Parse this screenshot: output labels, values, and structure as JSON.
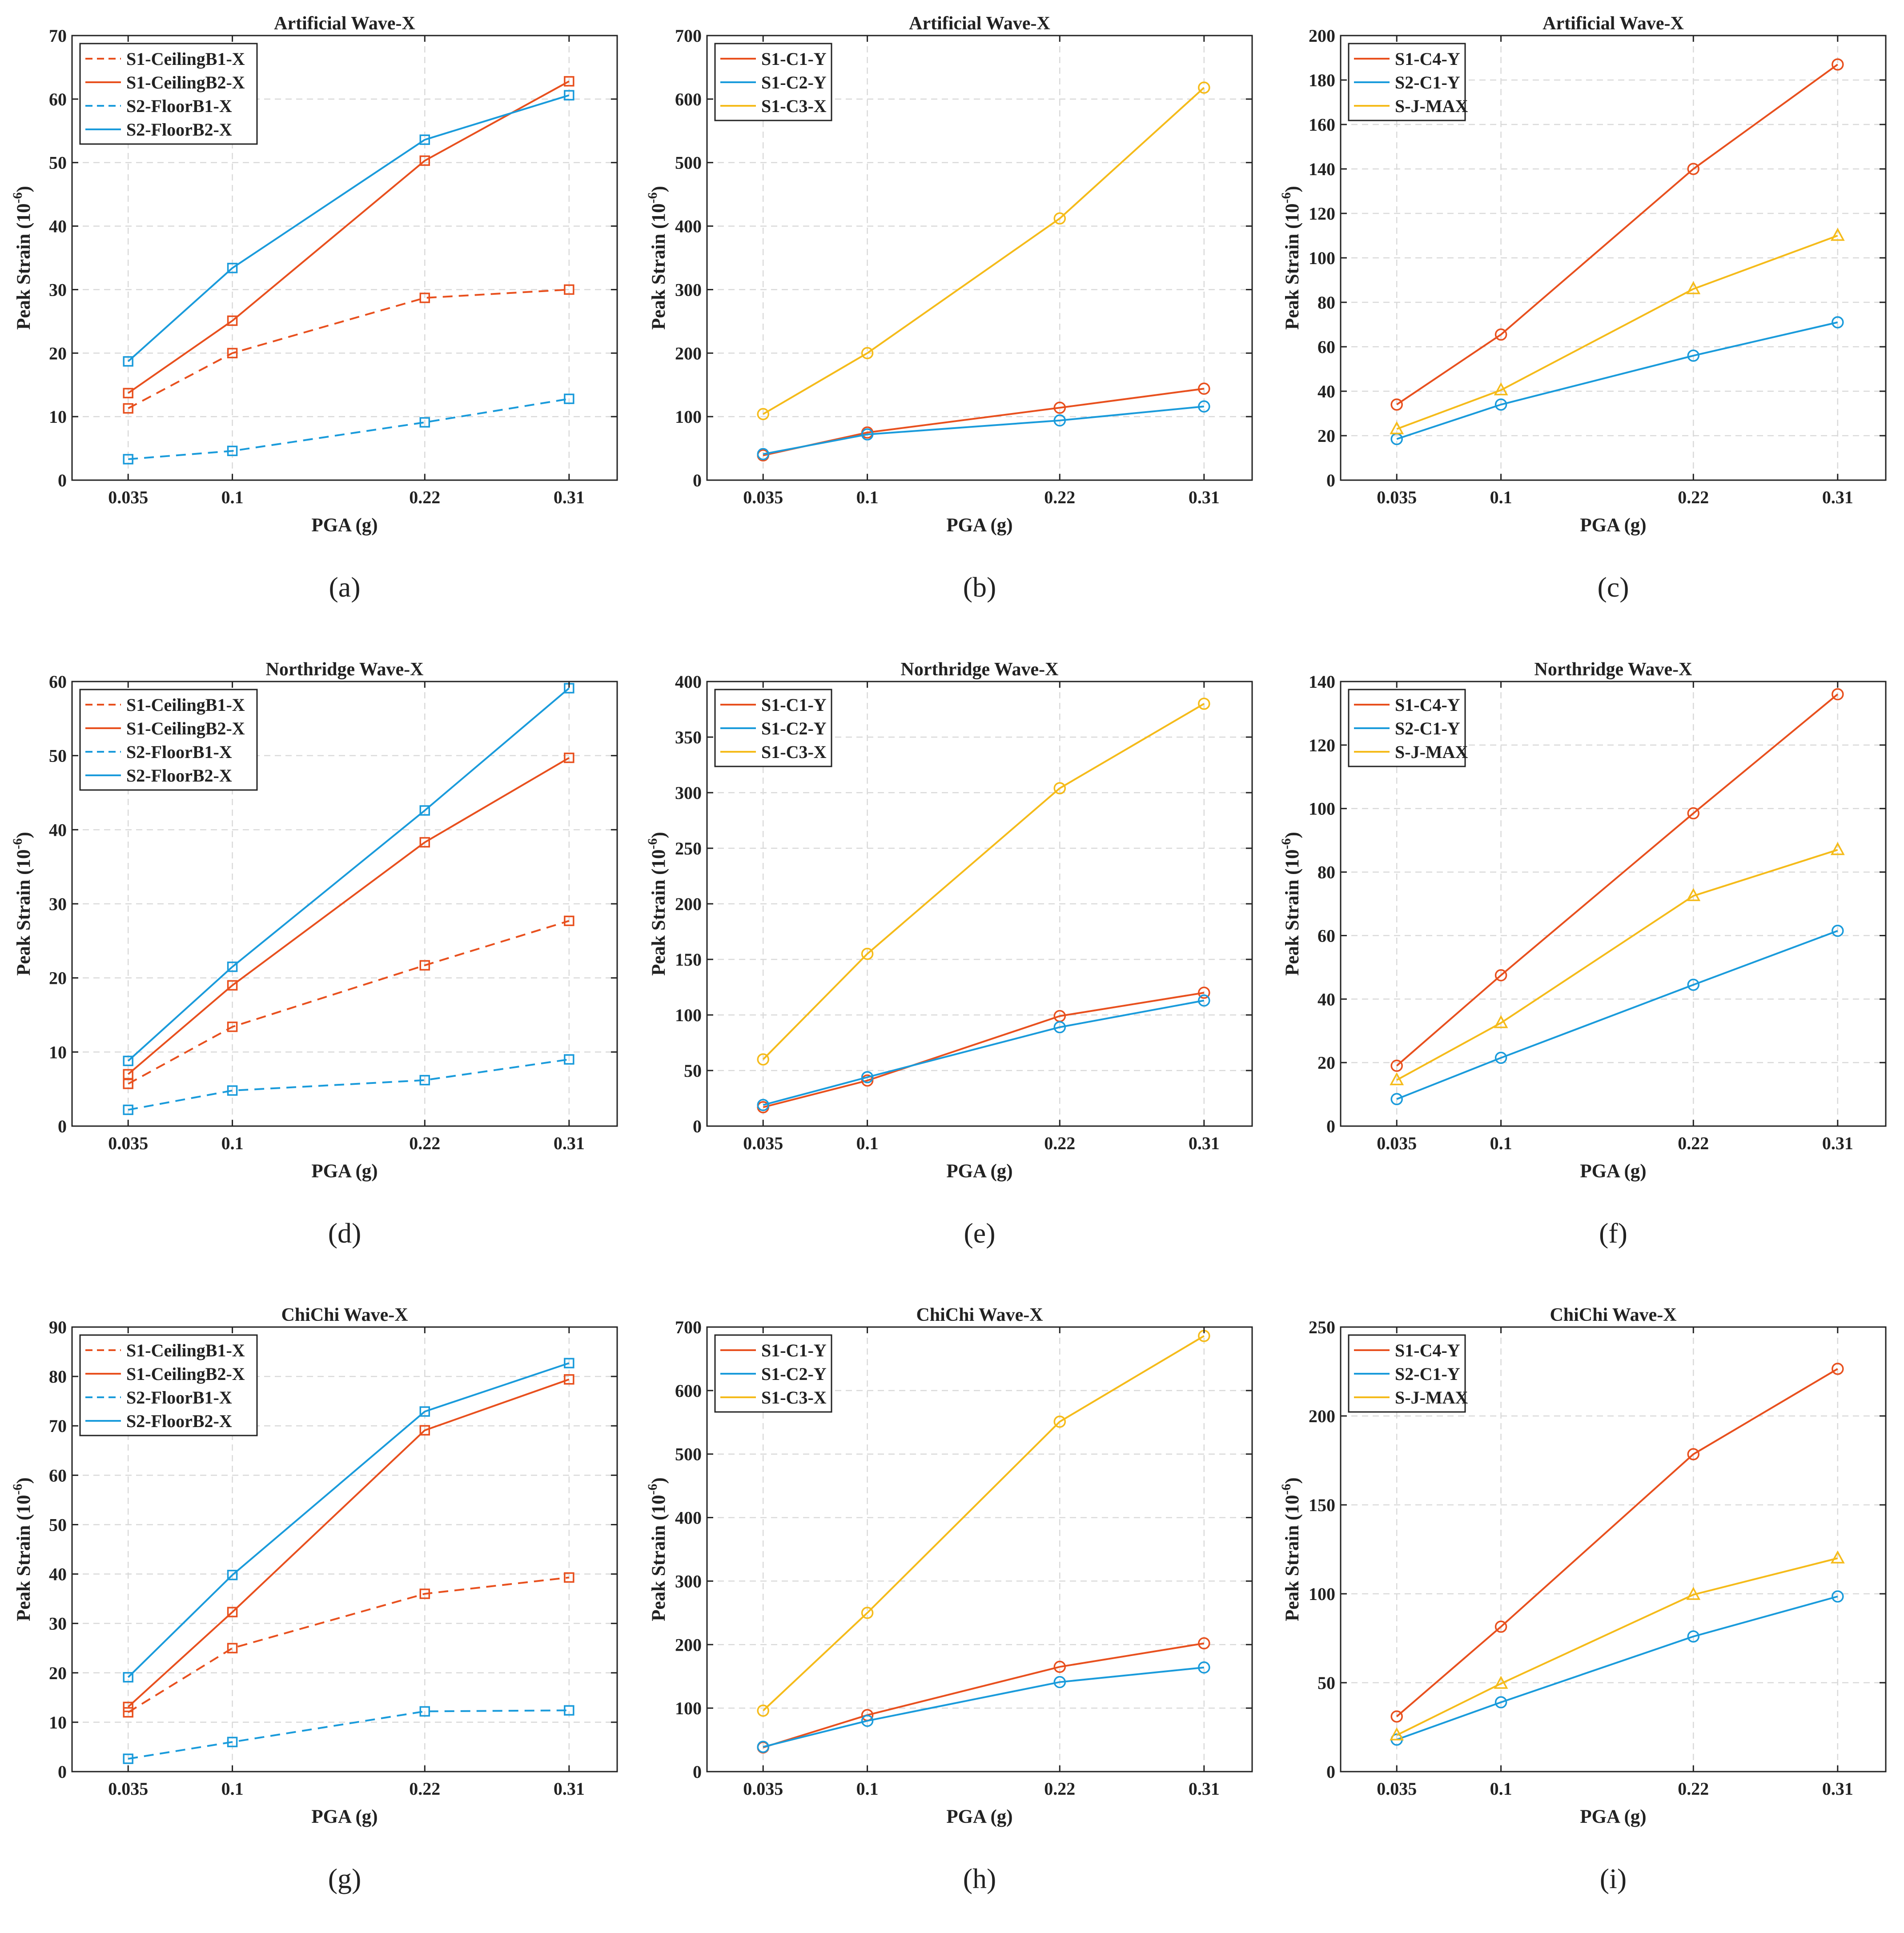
{
  "figure": {
    "xlabel": "PGA (g)",
    "ylabel": "Peak Strain (10",
    "ylabel_sup": "-6",
    "ylabel_end": ")"
  },
  "colors": {
    "orange": "#E8501E",
    "blue": "#1A9BDB",
    "yellow": "#F5BB1A"
  },
  "chart_data": [
    {
      "panel": "(a)",
      "title": "Artificial Wave-X",
      "type": "line",
      "categories": [
        "0.035",
        "0.1",
        "0.22",
        "0.31"
      ],
      "x": [
        0.035,
        0.1,
        0.22,
        0.31
      ],
      "xlim": [
        0.0,
        0.34
      ],
      "ylim": [
        0,
        70
      ],
      "yticks": [
        0,
        10,
        20,
        30,
        40,
        50,
        60,
        70
      ],
      "grid": true,
      "legend": "top-left",
      "series": [
        {
          "name": "S1-CeilingB1-X",
          "color": "orange",
          "dashed": true,
          "marker": "square",
          "values": [
            11.3,
            20.0,
            28.7,
            30.0
          ]
        },
        {
          "name": "S1-CeilingB2-X",
          "color": "orange",
          "dashed": false,
          "marker": "square",
          "values": [
            13.7,
            25.1,
            50.3,
            62.8
          ]
        },
        {
          "name": "S2-FloorB1-X",
          "color": "blue",
          "dashed": true,
          "marker": "square",
          "values": [
            3.3,
            4.6,
            9.1,
            12.8
          ]
        },
        {
          "name": "S2-FloorB2-X",
          "color": "blue",
          "dashed": false,
          "marker": "square",
          "values": [
            18.7,
            33.4,
            53.6,
            60.6
          ]
        }
      ]
    },
    {
      "panel": "(b)",
      "title": "Artificial Wave-X",
      "type": "line",
      "categories": [
        "0.035",
        "0.1",
        "0.22",
        "0.31"
      ],
      "x": [
        0.035,
        0.1,
        0.22,
        0.31
      ],
      "xlim": [
        0.0,
        0.34
      ],
      "ylim": [
        0,
        700
      ],
      "yticks": [
        0,
        100,
        200,
        300,
        400,
        500,
        600,
        700
      ],
      "grid": true,
      "legend": "top-left",
      "series": [
        {
          "name": "S1-C1-Y",
          "color": "orange",
          "dashed": false,
          "marker": "circle",
          "values": [
            39,
            75,
            114,
            144
          ]
        },
        {
          "name": "S1-C2-Y",
          "color": "blue",
          "dashed": false,
          "marker": "circle",
          "values": [
            41,
            72,
            94,
            116
          ]
        },
        {
          "name": "S1-C3-X",
          "color": "yellow",
          "dashed": false,
          "marker": "circle",
          "values": [
            104,
            200,
            412,
            618
          ]
        }
      ]
    },
    {
      "panel": "(c)",
      "title": "Artificial Wave-X",
      "type": "line",
      "categories": [
        "0.035",
        "0.1",
        "0.22",
        "0.31"
      ],
      "x": [
        0.035,
        0.1,
        0.22,
        0.31
      ],
      "xlim": [
        0.0,
        0.34
      ],
      "ylim": [
        0,
        200
      ],
      "yticks": [
        0,
        20,
        40,
        60,
        80,
        100,
        120,
        140,
        160,
        180,
        200
      ],
      "grid": true,
      "legend": "top-left",
      "series": [
        {
          "name": "S1-C4-Y",
          "color": "orange",
          "dashed": false,
          "marker": "circle",
          "values": [
            34,
            65.5,
            140,
            187
          ]
        },
        {
          "name": "S2-C1-Y",
          "color": "blue",
          "dashed": false,
          "marker": "circle",
          "values": [
            18.5,
            34,
            56,
            71
          ]
        },
        {
          "name": "S-J-MAX",
          "color": "yellow",
          "dashed": false,
          "marker": "triangle",
          "values": [
            23,
            40.5,
            86,
            110
          ]
        }
      ]
    },
    {
      "panel": "(d)",
      "title": "Northridge Wave-X",
      "type": "line",
      "categories": [
        "0.035",
        "0.1",
        "0.22",
        "0.31"
      ],
      "x": [
        0.035,
        0.1,
        0.22,
        0.31
      ],
      "xlim": [
        0.0,
        0.34
      ],
      "ylim": [
        0,
        60
      ],
      "yticks": [
        0,
        10,
        20,
        30,
        40,
        50,
        60
      ],
      "grid": true,
      "legend": "top-left",
      "series": [
        {
          "name": "S1-CeilingB1-X",
          "color": "orange",
          "dashed": true,
          "marker": "square",
          "values": [
            5.7,
            13.4,
            21.7,
            27.7
          ]
        },
        {
          "name": "S1-CeilingB2-X",
          "color": "orange",
          "dashed": false,
          "marker": "square",
          "values": [
            7.0,
            19.0,
            38.3,
            49.7
          ]
        },
        {
          "name": "S2-FloorB1-X",
          "color": "blue",
          "dashed": true,
          "marker": "square",
          "values": [
            2.2,
            4.8,
            6.2,
            9.0
          ]
        },
        {
          "name": "S2-FloorB2-X",
          "color": "blue",
          "dashed": false,
          "marker": "square",
          "values": [
            8.8,
            21.5,
            42.6,
            59.1
          ]
        }
      ]
    },
    {
      "panel": "(e)",
      "title": "Northridge Wave-X",
      "type": "line",
      "categories": [
        "0.035",
        "0.1",
        "0.22",
        "0.31"
      ],
      "x": [
        0.035,
        0.1,
        0.22,
        0.31
      ],
      "xlim": [
        0.0,
        0.34
      ],
      "ylim": [
        0,
        400
      ],
      "yticks": [
        0,
        50,
        100,
        150,
        200,
        250,
        300,
        350,
        400
      ],
      "grid": true,
      "legend": "top-left",
      "series": [
        {
          "name": "S1-C1-Y",
          "color": "orange",
          "dashed": false,
          "marker": "circle",
          "values": [
            17,
            41,
            99,
            120
          ]
        },
        {
          "name": "S1-C2-Y",
          "color": "blue",
          "dashed": false,
          "marker": "circle",
          "values": [
            19,
            44,
            89,
            113
          ]
        },
        {
          "name": "S1-C3-X",
          "color": "yellow",
          "dashed": false,
          "marker": "circle",
          "values": [
            60,
            155,
            304,
            380
          ]
        }
      ]
    },
    {
      "panel": "(f)",
      "title": "Northridge Wave-X",
      "type": "line",
      "categories": [
        "0.035",
        "0.1",
        "0.22",
        "0.31"
      ],
      "x": [
        0.035,
        0.1,
        0.22,
        0.31
      ],
      "xlim": [
        0.0,
        0.34
      ],
      "ylim": [
        0,
        140
      ],
      "yticks": [
        0,
        20,
        40,
        60,
        80,
        100,
        120,
        140
      ],
      "grid": true,
      "legend": "top-left",
      "series": [
        {
          "name": "S1-C4-Y",
          "color": "orange",
          "dashed": false,
          "marker": "circle",
          "values": [
            19,
            47.5,
            98.5,
            136
          ]
        },
        {
          "name": "S2-C1-Y",
          "color": "blue",
          "dashed": false,
          "marker": "circle",
          "values": [
            8.5,
            21.5,
            44.5,
            61.5
          ]
        },
        {
          "name": "S-J-MAX",
          "color": "yellow",
          "dashed": false,
          "marker": "triangle",
          "values": [
            14.5,
            32.5,
            72.5,
            87
          ]
        }
      ]
    },
    {
      "panel": "(g)",
      "title": "ChiChi Wave-X",
      "type": "line",
      "categories": [
        "0.035",
        "0.1",
        "0.22",
        "0.31"
      ],
      "x": [
        0.035,
        0.1,
        0.22,
        0.31
      ],
      "xlim": [
        0.0,
        0.34
      ],
      "ylim": [
        0,
        90
      ],
      "yticks": [
        0,
        10,
        20,
        30,
        40,
        50,
        60,
        70,
        80,
        90
      ],
      "grid": true,
      "legend": "top-left",
      "series": [
        {
          "name": "S1-CeilingB1-X",
          "color": "orange",
          "dashed": true,
          "marker": "square",
          "values": [
            12.0,
            25.0,
            36.0,
            39.3
          ]
        },
        {
          "name": "S1-CeilingB2-X",
          "color": "orange",
          "dashed": false,
          "marker": "square",
          "values": [
            13.1,
            32.3,
            69.1,
            79.4
          ]
        },
        {
          "name": "S2-FloorB1-X",
          "color": "blue",
          "dashed": true,
          "marker": "square",
          "values": [
            2.6,
            6.0,
            12.2,
            12.4
          ]
        },
        {
          "name": "S2-FloorB2-X",
          "color": "blue",
          "dashed": false,
          "marker": "square",
          "values": [
            19.1,
            39.8,
            72.9,
            82.7
          ]
        }
      ]
    },
    {
      "panel": "(h)",
      "title": "ChiChi Wave-X",
      "type": "line",
      "categories": [
        "0.035",
        "0.1",
        "0.22",
        "0.31"
      ],
      "x": [
        0.035,
        0.1,
        0.22,
        0.31
      ],
      "xlim": [
        0.0,
        0.34
      ],
      "ylim": [
        0,
        700
      ],
      "yticks": [
        0,
        100,
        200,
        300,
        400,
        500,
        600,
        700
      ],
      "grid": true,
      "legend": "top-left",
      "series": [
        {
          "name": "S1-C1-Y",
          "color": "orange",
          "dashed": false,
          "marker": "circle",
          "values": [
            38,
            89,
            165,
            202
          ]
        },
        {
          "name": "S1-C2-Y",
          "color": "blue",
          "dashed": false,
          "marker": "circle",
          "values": [
            39,
            80,
            141,
            164
          ]
        },
        {
          "name": "S1-C3-X",
          "color": "yellow",
          "dashed": false,
          "marker": "circle",
          "values": [
            96,
            250,
            551,
            686
          ]
        }
      ]
    },
    {
      "panel": "(i)",
      "title": "ChiChi Wave-X",
      "type": "line",
      "categories": [
        "0.035",
        "0.1",
        "0.22",
        "0.31"
      ],
      "x": [
        0.035,
        0.1,
        0.22,
        0.31
      ],
      "xlim": [
        0.0,
        0.34
      ],
      "ylim": [
        0,
        250
      ],
      "yticks": [
        0,
        50,
        100,
        150,
        200,
        250
      ],
      "grid": true,
      "legend": "top-left",
      "series": [
        {
          "name": "S1-C4-Y",
          "color": "orange",
          "dashed": false,
          "marker": "circle",
          "values": [
            31,
            81.5,
            178.5,
            226.5
          ]
        },
        {
          "name": "S2-C1-Y",
          "color": "blue",
          "dashed": false,
          "marker": "circle",
          "values": [
            18,
            39,
            76,
            98.5
          ]
        },
        {
          "name": "S-J-MAX",
          "color": "yellow",
          "dashed": false,
          "marker": "triangle",
          "values": [
            20.5,
            49.5,
            99.5,
            120
          ]
        }
      ]
    }
  ]
}
